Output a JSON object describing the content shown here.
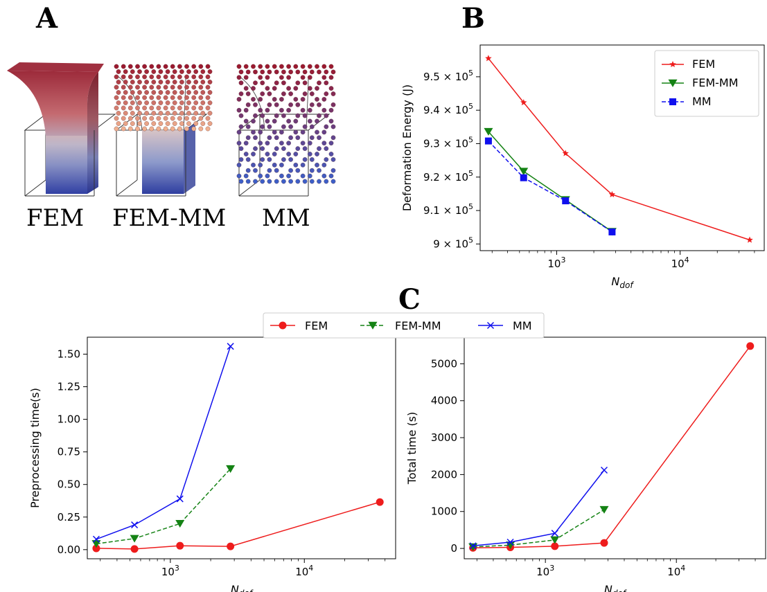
{
  "panels": {
    "a_letter": "A",
    "b_letter": "B",
    "c_letter": "C",
    "render_labels": [
      "FEM",
      "FEM-MM",
      "MM"
    ]
  },
  "colors": {
    "FEM": "#ee1c1c",
    "FEM-MM": "#148214",
    "MM": "#1010ee"
  },
  "chart_data": [
    {
      "type": "line",
      "panel": "B",
      "xlabel": "N_dof",
      "ylabel": "Deformation Energy (J)",
      "xscale": "log",
      "xlim": [
        240,
        48000
      ],
      "ylim": [
        898000,
        959500
      ],
      "xticks": [
        {
          "v": 1000,
          "mant": "10",
          "exp": "3"
        },
        {
          "v": 10000,
          "mant": "10",
          "exp": "4"
        }
      ],
      "yticks": [
        {
          "v": 900000,
          "mant": "9",
          "exp": "5"
        },
        {
          "v": 910000,
          "mant": "9.1",
          "exp": "5"
        },
        {
          "v": 920000,
          "mant": "9.2",
          "exp": "5"
        },
        {
          "v": 930000,
          "mant": "9.3",
          "exp": "5"
        },
        {
          "v": 940000,
          "mant": "9.4",
          "exp": "5"
        },
        {
          "v": 950000,
          "mant": "9.5",
          "exp": "5"
        }
      ],
      "legend": "top-right",
      "series": [
        {
          "name": "FEM",
          "marker": "star",
          "dash": false,
          "x": [
            280,
            540,
            1180,
            2810,
            36600
          ],
          "y": [
            955500,
            942300,
            927100,
            914800,
            901200
          ]
        },
        {
          "name": "FEM-MM",
          "marker": "triangle-down",
          "dash": false,
          "x": [
            280,
            540,
            1180,
            2810
          ],
          "y": [
            933600,
            921700,
            913200,
            903700
          ]
        },
        {
          "name": "MM",
          "marker": "square",
          "dash": true,
          "x": [
            280,
            540,
            1180,
            2810
          ],
          "y": [
            930800,
            919800,
            912900,
            903600
          ]
        }
      ]
    },
    {
      "type": "line",
      "panel": "C-left",
      "xlabel": "N_dof",
      "ylabel": "Preprocessing time(s)",
      "xscale": "log",
      "xlim": [
        240,
        48000
      ],
      "ylim": [
        -0.07,
        1.63
      ],
      "xticks": [
        {
          "v": 1000,
          "mant": "10",
          "exp": "3"
        },
        {
          "v": 10000,
          "mant": "10",
          "exp": "4"
        }
      ],
      "yticks": [
        {
          "v": 0,
          "label": "0.00"
        },
        {
          "v": 0.25,
          "label": "0.25"
        },
        {
          "v": 0.5,
          "label": "0.50"
        },
        {
          "v": 0.75,
          "label": "0.75"
        },
        {
          "v": 1.0,
          "label": "1.00"
        },
        {
          "v": 1.25,
          "label": "1.25"
        },
        {
          "v": 1.5,
          "label": "1.50"
        }
      ],
      "series": [
        {
          "name": "FEM",
          "marker": "circle",
          "dash": false,
          "x": [
            280,
            540,
            1180,
            2810,
            36600
          ],
          "y": [
            0.01,
            0.005,
            0.03,
            0.025,
            0.365
          ]
        },
        {
          "name": "FEM-MM",
          "marker": "triangle-down",
          "dash": true,
          "x": [
            280,
            540,
            1180,
            2810
          ],
          "y": [
            0.045,
            0.085,
            0.2,
            0.62
          ]
        },
        {
          "name": "MM",
          "marker": "x",
          "dash": false,
          "x": [
            280,
            540,
            1180,
            2810
          ],
          "y": [
            0.08,
            0.19,
            0.39,
            1.56
          ]
        }
      ]
    },
    {
      "type": "line",
      "panel": "C-right",
      "xlabel": "N_dof",
      "ylabel": "Total time (s)",
      "xscale": "log",
      "xlim": [
        240,
        48000
      ],
      "ylim": [
        -280,
        5720
      ],
      "xticks": [
        {
          "v": 1000,
          "mant": "10",
          "exp": "3"
        },
        {
          "v": 10000,
          "mant": "10",
          "exp": "4"
        }
      ],
      "yticks": [
        {
          "v": 0,
          "label": "0"
        },
        {
          "v": 1000,
          "label": "1000"
        },
        {
          "v": 2000,
          "label": "2000"
        },
        {
          "v": 3000,
          "label": "3000"
        },
        {
          "v": 4000,
          "label": "4000"
        },
        {
          "v": 5000,
          "label": "5000"
        }
      ],
      "series": [
        {
          "name": "FEM",
          "marker": "circle",
          "dash": false,
          "x": [
            280,
            540,
            1180,
            2810,
            36600
          ],
          "y": [
            15,
            30,
            60,
            150,
            5480
          ]
        },
        {
          "name": "FEM-MM",
          "marker": "triangle-down",
          "dash": true,
          "x": [
            280,
            540,
            1180,
            2810
          ],
          "y": [
            40,
            90,
            230,
            1050
          ]
        },
        {
          "name": "MM",
          "marker": "x",
          "dash": false,
          "x": [
            280,
            540,
            1180,
            2810
          ],
          "y": [
            70,
            170,
            410,
            2120
          ]
        }
      ]
    }
  ],
  "shared_legend": {
    "entries": [
      {
        "name": "FEM",
        "marker": "circle",
        "dash": false
      },
      {
        "name": "FEM-MM",
        "marker": "triangle-down",
        "dash": true
      },
      {
        "name": "MM",
        "marker": "x",
        "dash": false
      }
    ]
  }
}
